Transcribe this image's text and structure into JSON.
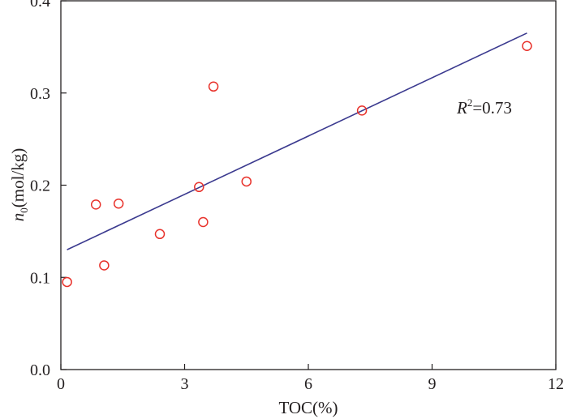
{
  "chart_data": {
    "type": "scatter",
    "xlabel": "TOC(%)",
    "ylabel": {
      "main": "n",
      "sub": "0",
      "rest": "(mol/kg)"
    },
    "xlim": [
      0,
      12
    ],
    "ylim": [
      0,
      0.4
    ],
    "xticks": [
      0,
      3,
      6,
      9,
      12
    ],
    "xtick_labels": [
      "0",
      "3",
      "6",
      "9",
      "12"
    ],
    "yticks": [
      0,
      0.1,
      0.2,
      0.3,
      0.4
    ],
    "ytick_labels": [
      "0.0",
      "0.1",
      "0.2",
      "0.3",
      "0.4"
    ],
    "grid": false,
    "series": [
      {
        "kind": "points",
        "marker": "open-circle",
        "color": "#e8312a",
        "x": [
          0.15,
          0.85,
          1.05,
          1.4,
          2.4,
          3.35,
          3.45,
          3.7,
          4.5,
          7.3,
          11.3
        ],
        "y": [
          0.095,
          0.179,
          0.113,
          0.18,
          0.147,
          0.198,
          0.16,
          0.307,
          0.204,
          0.281,
          0.351
        ]
      },
      {
        "kind": "fit-line",
        "color": "#3b3a8f",
        "x": [
          0.15,
          11.3
        ],
        "y": [
          0.13,
          0.365
        ]
      }
    ],
    "annotation": {
      "main": "R",
      "sup": "2",
      "rest": "=0.73",
      "x": 9.6,
      "y": 0.278
    }
  }
}
